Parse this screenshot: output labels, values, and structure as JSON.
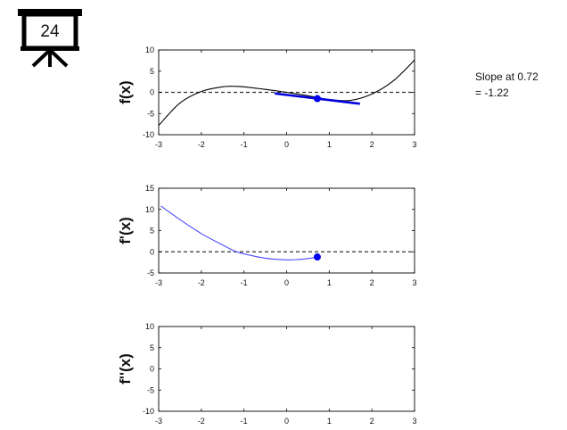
{
  "slide": {
    "number": "24",
    "icon": "presentation-board-icon"
  },
  "annotation": {
    "slope_prefix": "Slope at",
    "slope_x": "0.72",
    "slope_equals": "= -1.22"
  },
  "colors": {
    "curve": "#000000",
    "derivative": "#4b4bff",
    "tangent": "#0000dd",
    "marker": "#0000ee",
    "zero_line": "#333333"
  },
  "chart_data": [
    {
      "type": "line",
      "ylabel": "f(x)",
      "xlim": [
        -3,
        3
      ],
      "ylim": [
        -10,
        10
      ],
      "xticks": [
        -3,
        -2,
        -1,
        0,
        1,
        2,
        3
      ],
      "yticks": [
        -10,
        -5,
        0,
        5,
        10
      ],
      "zero_line": true,
      "series": [
        {
          "role": "curve",
          "x": [
            -3,
            -2.5,
            -2,
            -1.5,
            -1.2,
            -1,
            -0.5,
            0,
            0.5,
            1,
            1.5,
            2,
            2.5,
            3
          ],
          "y": [
            -7.8,
            -2.5,
            0.2,
            1.3,
            1.4,
            1.3,
            0.7,
            0,
            -0.8,
            -1.7,
            -1.9,
            -0.4,
            2.7,
            7.6
          ]
        },
        {
          "role": "tangent",
          "x": [
            -0.28,
            1.72
          ],
          "y": [
            -0.26,
            -2.7
          ]
        }
      ],
      "point": {
        "x": 0.72,
        "y": -1.48
      }
    },
    {
      "type": "line",
      "ylabel": "f'(x)",
      "xlim": [
        -3,
        3
      ],
      "ylim": [
        -5,
        15
      ],
      "xticks": [
        -3,
        -2,
        -1,
        0,
        1,
        2,
        3
      ],
      "yticks": [
        -5,
        0,
        5,
        10,
        15
      ],
      "zero_line": true,
      "series": [
        {
          "role": "derivative",
          "x": [
            -2.95,
            -2.5,
            -2,
            -1.5,
            -1.2,
            -1,
            -0.5,
            0,
            0.3,
            0.5,
            0.72
          ],
          "y": [
            10.8,
            7.6,
            4.3,
            1.6,
            0.1,
            -0.5,
            -1.5,
            -1.9,
            -1.8,
            -1.6,
            -1.22
          ]
        }
      ],
      "point": {
        "x": 0.72,
        "y": -1.22
      }
    },
    {
      "type": "line",
      "ylabel": "f''(x)",
      "xlim": [
        -3,
        3
      ],
      "ylim": [
        -10,
        10
      ],
      "xticks": [
        -3,
        -2,
        -1,
        0,
        1,
        2,
        3
      ],
      "yticks": [
        -10,
        -5,
        0,
        5,
        10
      ],
      "zero_line": false,
      "series": []
    }
  ]
}
